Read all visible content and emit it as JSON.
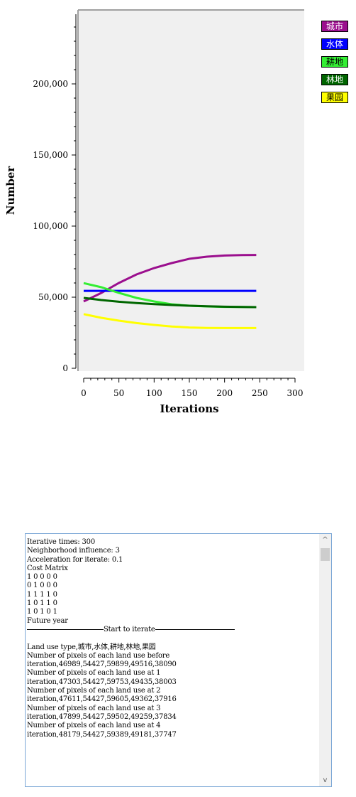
{
  "chart_data": {
    "type": "line",
    "xlabel": "Iterations",
    "ylabel": "Number",
    "xlim": [
      0,
      300
    ],
    "ylim": [
      0,
      250000
    ],
    "x_ticks": [
      "0",
      "50",
      "100",
      "150",
      "200",
      "250",
      "300"
    ],
    "y_ticks": [
      "0",
      "50,000",
      "100,000",
      "150,000",
      "200,000"
    ],
    "x": [
      0,
      25,
      50,
      75,
      100,
      125,
      150,
      175,
      200,
      225,
      245
    ],
    "series": [
      {
        "name": "城市",
        "color": "#9b0f8e",
        "values": [
          46989,
          53000,
          60000,
          66000,
          70500,
          74000,
          77000,
          78500,
          79300,
          79600,
          79700
        ]
      },
      {
        "name": "水体",
        "color": "#0000ff",
        "values": [
          54427,
          54427,
          54427,
          54427,
          54427,
          54427,
          54427,
          54427,
          54427,
          54427,
          54427
        ]
      },
      {
        "name": "耕地",
        "color": "#33ee33",
        "values": [
          59899,
          57000,
          53000,
          49500,
          47000,
          45000,
          44000,
          43500,
          43200,
          43100,
          43000
        ]
      },
      {
        "name": "林地",
        "color": "#006600",
        "values": [
          49516,
          48000,
          46800,
          45900,
          45100,
          44500,
          44000,
          43600,
          43300,
          43100,
          43000
        ]
      },
      {
        "name": "果园",
        "color": "#ffff00",
        "values": [
          38090,
          35500,
          33500,
          31800,
          30500,
          29400,
          28700,
          28400,
          28300,
          28300,
          28300
        ]
      }
    ],
    "grid": false,
    "legend_position": "top-right",
    "plot_background": "#f0f0f0"
  },
  "legend": [
    {
      "label": "城市",
      "bg": "#9b0f8e",
      "fg": "#ffffff"
    },
    {
      "label": "水体",
      "bg": "#0000ff",
      "fg": "#ffffff"
    },
    {
      "label": "耕地",
      "bg": "#33ee33",
      "fg": "#000000"
    },
    {
      "label": "林地",
      "bg": "#006600",
      "fg": "#ffffff"
    },
    {
      "label": "果园",
      "bg": "#ffff00",
      "fg": "#000000"
    }
  ],
  "log": {
    "lines_before": [
      "Iterative times: 300",
      "Neighborhood influence: 3",
      "Acceleration for iterate: 0.1",
      "Cost Matrix",
      "1 0 0 0 0",
      "0 1 0 0 0",
      "1 1 1 1 0",
      "1 0 1 1 0",
      "1 0 1 0 1",
      "Future year"
    ],
    "separator_text": "Start to iterate",
    "lines_after": [
      "Land use type,城市,水体,耕地,林地,果园",
      "Number of pixels of each land use before",
      "iteration,46989,54427,59899,49516,38090",
      "Number of pixels of each land use at 1",
      "iteration,47303,54427,59753,49435,38003",
      "Number of pixels of each land use at 2",
      "iteration,47611,54427,59605,49362,37916",
      "Number of pixels of each land use at 3",
      "iteration,47899,54427,59502,49259,37834",
      "Number of pixels of each land use at 4",
      "iteration,48179,54427,59389,49181,37747"
    ],
    "scroll_up_glyph": "^",
    "scroll_down_glyph": "v"
  }
}
